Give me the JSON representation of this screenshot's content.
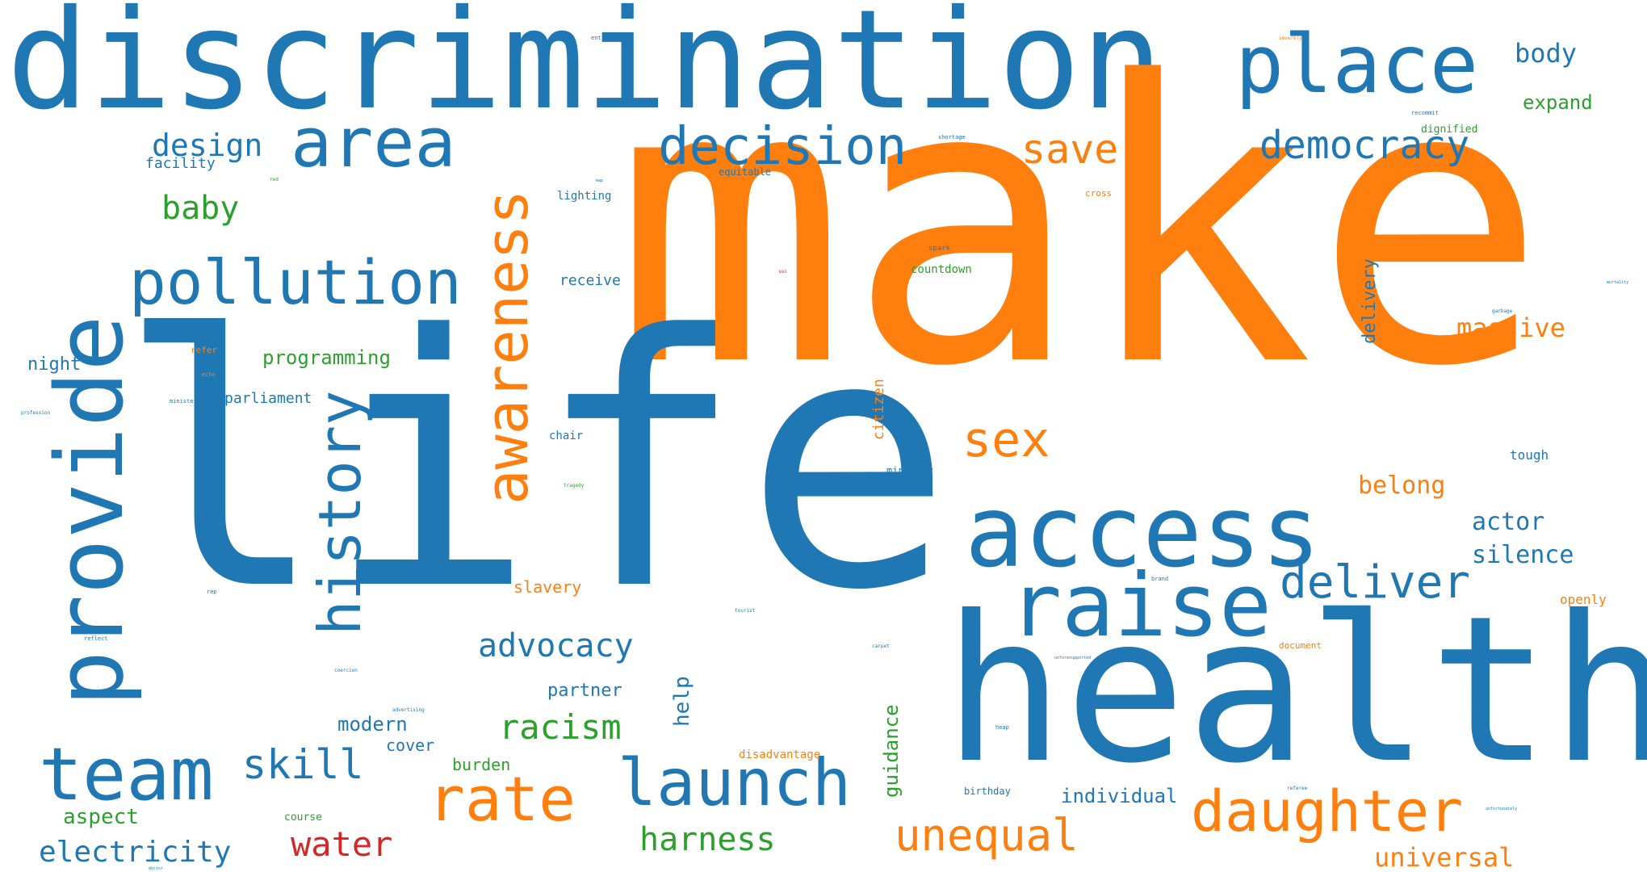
{
  "colors": {
    "blue": "#1f77b4",
    "orange": "#ff7f0e",
    "green": "#2ca02c",
    "red": "#d62728"
  },
  "words": {
    "discrimination": "discrimination",
    "make": "make",
    "life": "life",
    "health": "health",
    "place": "place",
    "area": "area",
    "provide": "provide",
    "access": "access",
    "raise": "raise",
    "awareness": "awareness",
    "pollution": "pollution",
    "decision": "decision",
    "history": "history",
    "team": "team",
    "launch": "launch",
    "daughter": "daughter",
    "rate": "rate",
    "deliver": "deliver",
    "democracy": "democracy",
    "sex": "sex",
    "save": "save",
    "unequal": "unequal",
    "advocacy": "advocacy",
    "racism": "racism",
    "skill": "skill",
    "harness": "harness",
    "water": "water",
    "electricity": "electricity",
    "design": "design",
    "baby": "baby",
    "massive": "massive",
    "universal": "universal",
    "body": "body",
    "expand": "expand",
    "belong": "belong",
    "actor": "actor",
    "silence": "silence",
    "programming": "programming",
    "delivery": "delivery",
    "citizen": "citizen",
    "guidance": "guidance",
    "help": "help",
    "modern": "modern",
    "cover": "cover",
    "partner": "partner",
    "individual": "individual",
    "slavery": "slavery",
    "parliament": "parliament",
    "night": "night",
    "facility": "facility",
    "aspect": "aspect",
    "burden": "burden",
    "countdown": "countdown",
    "receive": "receive",
    "lighting": "lighting",
    "dignified": "dignified",
    "tough": "tough",
    "openly": "openly",
    "disadvantage": "disadvantage",
    "course": "course",
    "chair": "chair",
    "minority": "minority",
    "equitable": "equitable",
    "birthday": "birthday",
    "refer": "refer",
    "cross": "cross",
    "document": "document",
    "spark": "spark",
    "entrance": "entrance",
    "shortage": "shortage",
    "recommit": "recommit",
    "echo": "echo",
    "minister": "minister",
    "profession": "profession",
    "reflect": "reflect",
    "rep": "rep",
    "coercion": "coercion",
    "advertising": "advertising",
    "brand": "brand",
    "tragedy": "tragedy",
    "carpet": "carpet",
    "unforesupported": "unforesupported",
    "heap": "heap",
    "referee": "referee",
    "garbage": "garbage",
    "severely": "severely",
    "red": "red",
    "soc": "soc",
    "tourist": "tourist",
    "unfortunately": "unfortunately",
    "doctor": "doctor",
    "map": "map",
    "mortality": "mortality"
  }
}
